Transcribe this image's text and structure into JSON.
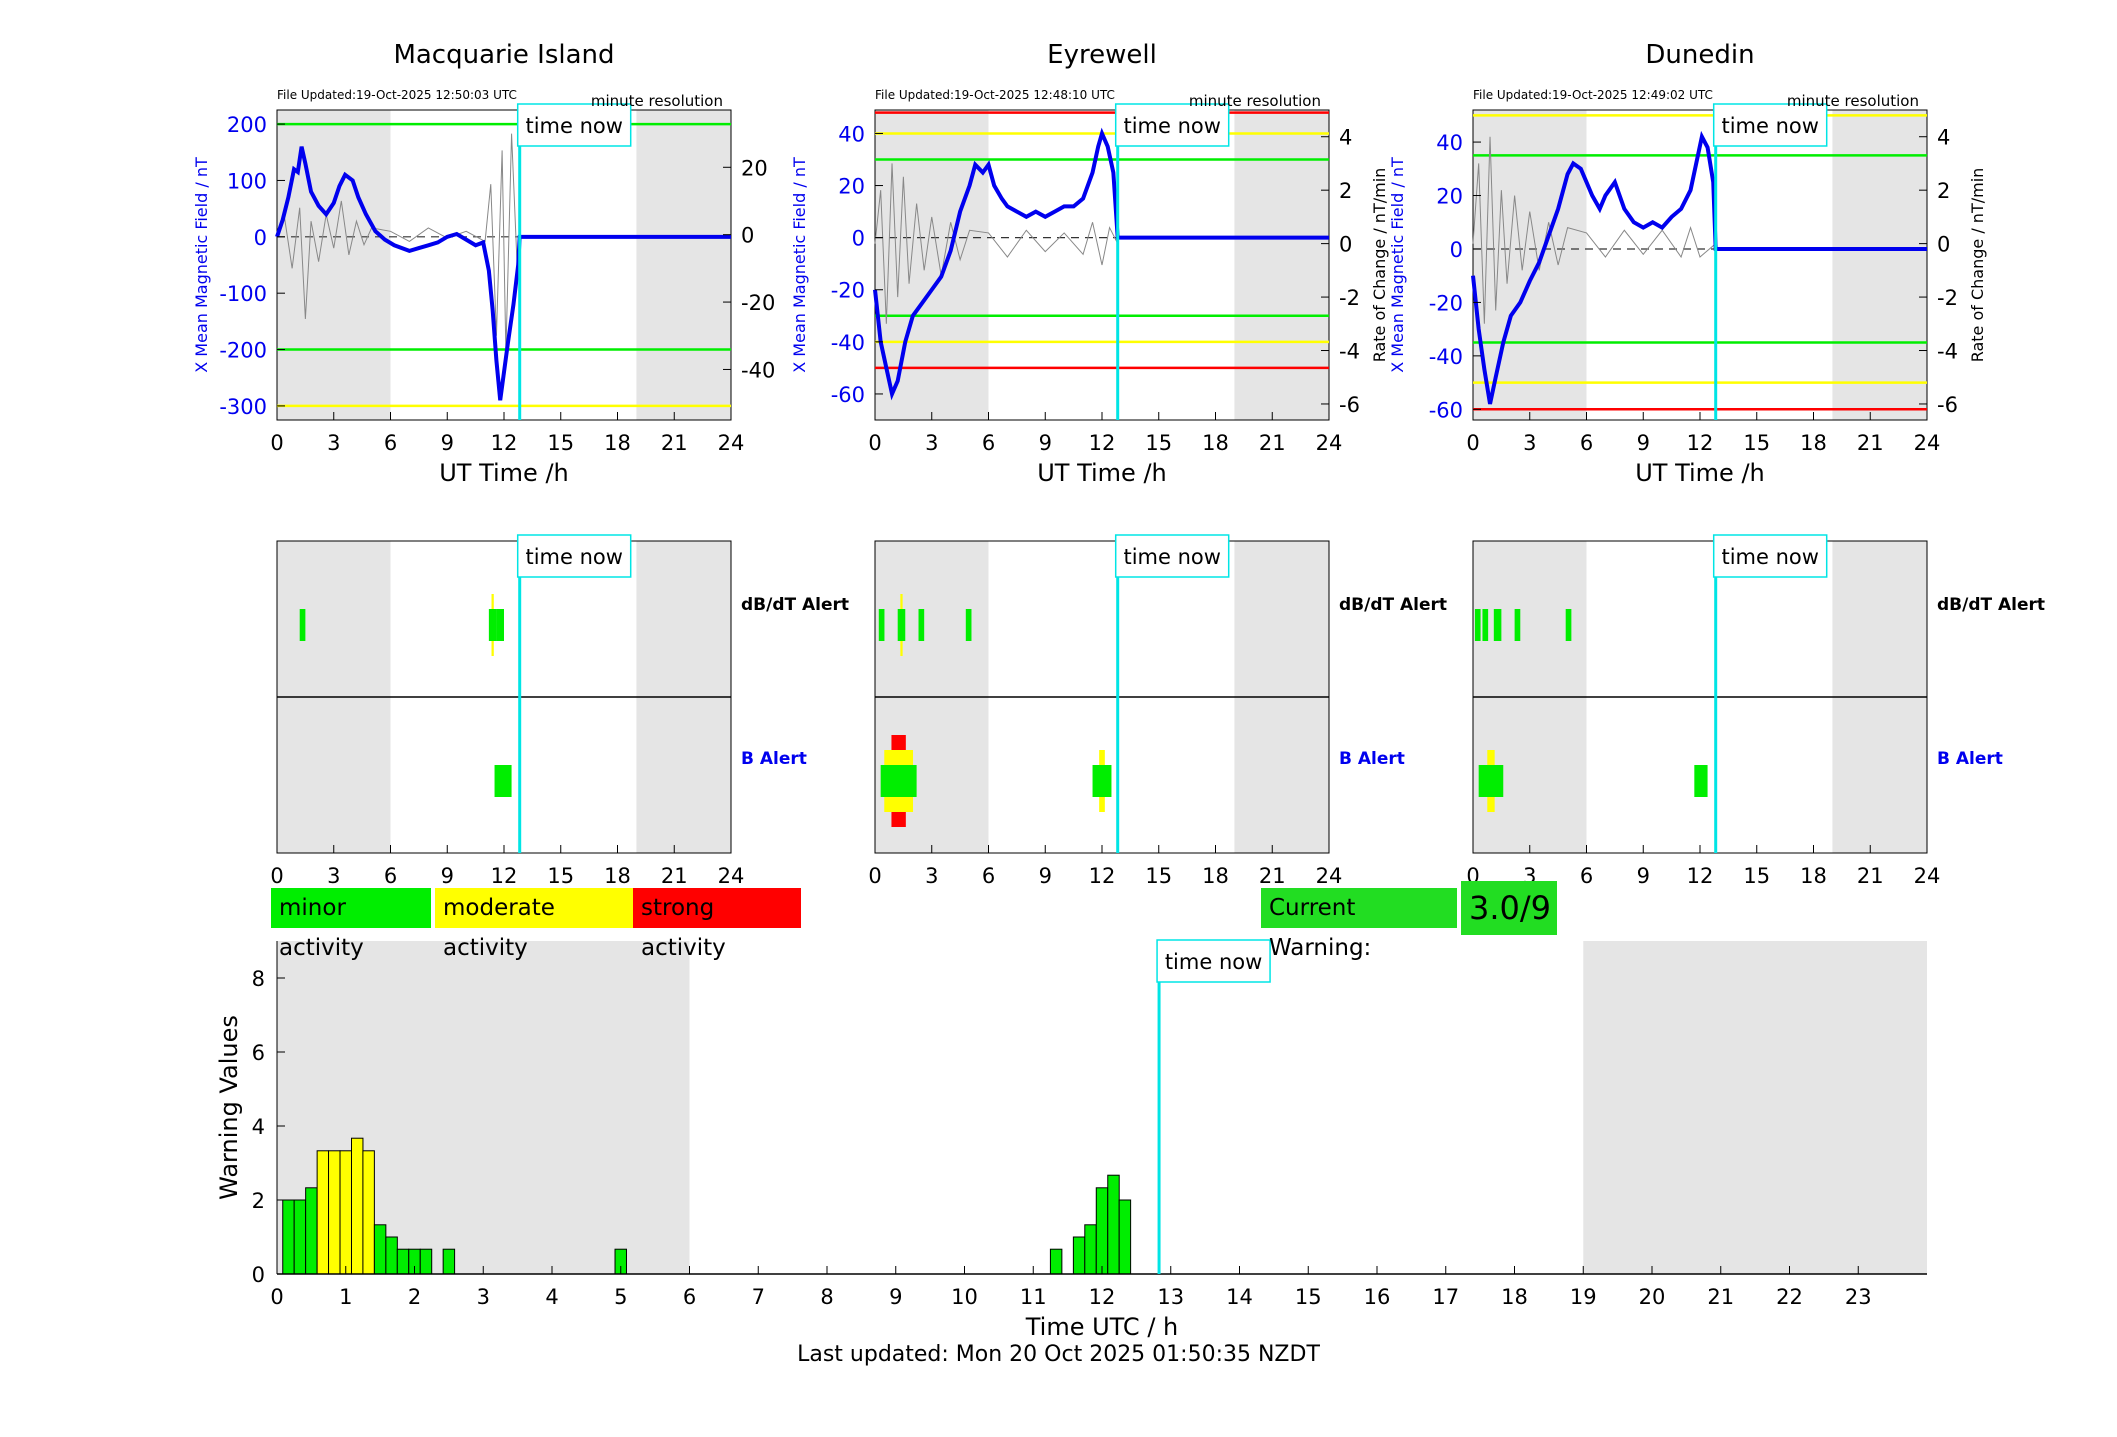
{
  "colors": {
    "minor": "#00ee00",
    "moderate": "#ffff00",
    "strong": "#ff0000",
    "field": "#0000ee",
    "roc": "#888888",
    "timenow": "#00e5e5",
    "shade": "#e5e5e5"
  },
  "legend": {
    "minor": "minor activity",
    "moderate": "moderate activity",
    "strong": "strong activity"
  },
  "current_warning": {
    "label": "Current Warning:",
    "value": "3.0/9"
  },
  "footer": "Last updated: Mon 20 Oct 2025 01:50:35 NZDT",
  "chart_data": [
    {
      "type": "line",
      "title": "Macquarie Island",
      "file_updated": "File Updated:19-Oct-2025 12:50:03 UTC",
      "resolution": "minute resolution",
      "time_now_label": "time now",
      "time_now": 12.83,
      "xlabel": "UT Time /h",
      "ylabel_left": "X Mean Magnetic Field / nT",
      "ylabel_right": "",
      "xlim": [
        0,
        24
      ],
      "ylim_left": [
        -325,
        225
      ],
      "ylim_right": [
        -55,
        37
      ],
      "xticks": [
        "0",
        "3",
        "6",
        "9",
        "12",
        "15",
        "18",
        "21",
        "24"
      ],
      "yticks_left": [
        200,
        100,
        0,
        -100,
        -200,
        -300
      ],
      "yticks_right": [
        20,
        0,
        -20,
        -40
      ],
      "shaded": [
        [
          0,
          6
        ],
        [
          19,
          24
        ]
      ],
      "thresholds": [
        {
          "value": 200,
          "color": "green"
        },
        {
          "value": -200,
          "color": "green"
        },
        {
          "value": -300,
          "color": "yellow"
        }
      ],
      "field_series": [
        [
          0,
          0
        ],
        [
          0.3,
          30
        ],
        [
          0.6,
          70
        ],
        [
          0.9,
          120
        ],
        [
          1.1,
          115
        ],
        [
          1.3,
          160
        ],
        [
          1.5,
          130
        ],
        [
          1.8,
          80
        ],
        [
          2.2,
          55
        ],
        [
          2.6,
          40
        ],
        [
          3,
          60
        ],
        [
          3.3,
          90
        ],
        [
          3.6,
          110
        ],
        [
          4,
          100
        ],
        [
          4.3,
          70
        ],
        [
          4.7,
          40
        ],
        [
          5.2,
          10
        ],
        [
          5.7,
          -5
        ],
        [
          6.2,
          -15
        ],
        [
          7,
          -25
        ],
        [
          7.5,
          -20
        ],
        [
          8,
          -15
        ],
        [
          8.5,
          -10
        ],
        [
          9,
          0
        ],
        [
          9.5,
          5
        ],
        [
          10,
          -5
        ],
        [
          10.5,
          -15
        ],
        [
          10.9,
          -10
        ],
        [
          11.2,
          -60
        ],
        [
          11.4,
          -130
        ],
        [
          11.6,
          -220
        ],
        [
          11.8,
          -290
        ],
        [
          12,
          -240
        ],
        [
          12.2,
          -190
        ],
        [
          12.5,
          -120
        ],
        [
          12.75,
          -50
        ],
        [
          12.83,
          0
        ],
        [
          24,
          0
        ]
      ],
      "roc_series": [
        [
          0,
          0
        ],
        [
          0.4,
          5
        ],
        [
          0.8,
          -10
        ],
        [
          1.2,
          8
        ],
        [
          1.5,
          -25
        ],
        [
          1.8,
          4
        ],
        [
          2.2,
          -8
        ],
        [
          2.6,
          6
        ],
        [
          3,
          -4
        ],
        [
          3.4,
          10
        ],
        [
          3.8,
          -6
        ],
        [
          4.2,
          4
        ],
        [
          4.6,
          -3
        ],
        [
          5,
          2
        ],
        [
          6,
          1
        ],
        [
          7,
          -2
        ],
        [
          8,
          2
        ],
        [
          9,
          -1
        ],
        [
          10,
          1
        ],
        [
          11,
          -2
        ],
        [
          11.3,
          15
        ],
        [
          11.6,
          -30
        ],
        [
          11.9,
          25
        ],
        [
          12.1,
          -35
        ],
        [
          12.4,
          30
        ],
        [
          12.7,
          -10
        ],
        [
          12.83,
          0
        ]
      ]
    },
    {
      "type": "line",
      "title": "Eyrewell",
      "file_updated": "File Updated:19-Oct-2025 12:48:10 UTC",
      "resolution": "minute resolution",
      "time_now_label": "time now",
      "time_now": 12.83,
      "xlabel": "UT Time /h",
      "ylabel_left": "X Mean Magnetic Field / nT",
      "ylabel_right": "Rate of Change / nT/min",
      "xlim": [
        0,
        24
      ],
      "ylim_left": [
        -70,
        49
      ],
      "ylim_right": [
        -6.6,
        5
      ],
      "xticks": [
        "0",
        "3",
        "6",
        "9",
        "12",
        "15",
        "18",
        "21",
        "24"
      ],
      "yticks_left": [
        40,
        20,
        0,
        -20,
        -40,
        -60
      ],
      "yticks_right": [
        4,
        2,
        0,
        -2,
        -4,
        -6
      ],
      "shaded": [
        [
          0,
          6
        ],
        [
          19,
          24
        ]
      ],
      "thresholds": [
        {
          "value": 48,
          "color": "red"
        },
        {
          "value": 40,
          "color": "yellow"
        },
        {
          "value": 30,
          "color": "green"
        },
        {
          "value": -30,
          "color": "green"
        },
        {
          "value": -40,
          "color": "yellow"
        },
        {
          "value": -50,
          "color": "red"
        }
      ],
      "field_series": [
        [
          0,
          -20
        ],
        [
          0.3,
          -40
        ],
        [
          0.6,
          -50
        ],
        [
          0.9,
          -60
        ],
        [
          1.2,
          -55
        ],
        [
          1.6,
          -40
        ],
        [
          2,
          -30
        ],
        [
          2.5,
          -25
        ],
        [
          3,
          -20
        ],
        [
          3.5,
          -15
        ],
        [
          4,
          -5
        ],
        [
          4.5,
          10
        ],
        [
          5,
          20
        ],
        [
          5.3,
          28
        ],
        [
          5.7,
          25
        ],
        [
          6,
          28
        ],
        [
          6.3,
          20
        ],
        [
          6.7,
          15
        ],
        [
          7,
          12
        ],
        [
          7.5,
          10
        ],
        [
          8,
          8
        ],
        [
          8.5,
          10
        ],
        [
          9,
          8
        ],
        [
          9.5,
          10
        ],
        [
          10,
          12
        ],
        [
          10.5,
          12
        ],
        [
          11,
          15
        ],
        [
          11.5,
          25
        ],
        [
          11.8,
          35
        ],
        [
          12,
          40
        ],
        [
          12.3,
          35
        ],
        [
          12.6,
          25
        ],
        [
          12.83,
          0
        ],
        [
          24,
          0
        ]
      ],
      "roc_series": [
        [
          0,
          0
        ],
        [
          0.3,
          2
        ],
        [
          0.6,
          -3
        ],
        [
          0.9,
          3
        ],
        [
          1.2,
          -2
        ],
        [
          1.5,
          2.5
        ],
        [
          1.8,
          -1.5
        ],
        [
          2.2,
          1.5
        ],
        [
          2.6,
          -1
        ],
        [
          3,
          1
        ],
        [
          3.5,
          -1.2
        ],
        [
          4,
          0.8
        ],
        [
          4.5,
          -0.6
        ],
        [
          5,
          0.5
        ],
        [
          6,
          0.4
        ],
        [
          7,
          -0.5
        ],
        [
          8,
          0.5
        ],
        [
          9,
          -0.3
        ],
        [
          10,
          0.4
        ],
        [
          11,
          -0.4
        ],
        [
          11.5,
          0.8
        ],
        [
          12,
          -0.8
        ],
        [
          12.4,
          0.6
        ],
        [
          12.83,
          0
        ]
      ]
    },
    {
      "type": "line",
      "title": "Dunedin",
      "file_updated": "File Updated:19-Oct-2025 12:49:02 UTC",
      "resolution": "minute resolution",
      "time_now_label": "time now",
      "time_now": 12.83,
      "xlabel": "UT Time /h",
      "ylabel_left": "X Mean Magnetic Field / nT",
      "ylabel_right": "Rate of Change / nT/min",
      "xlim": [
        0,
        24
      ],
      "ylim_left": [
        -64,
        52
      ],
      "ylim_right": [
        -6.6,
        5
      ],
      "xticks": [
        "0",
        "3",
        "6",
        "9",
        "12",
        "15",
        "18",
        "21",
        "24"
      ],
      "yticks_left": [
        40,
        20,
        0,
        -20,
        -40,
        -60
      ],
      "yticks_right": [
        4,
        2,
        0,
        -2,
        -4,
        -6
      ],
      "shaded": [
        [
          0,
          6
        ],
        [
          19,
          24
        ]
      ],
      "thresholds": [
        {
          "value": 50,
          "color": "yellow"
        },
        {
          "value": 35,
          "color": "green"
        },
        {
          "value": -35,
          "color": "green"
        },
        {
          "value": -50,
          "color": "yellow"
        },
        {
          "value": -60,
          "color": "red"
        }
      ],
      "field_series": [
        [
          0,
          -10
        ],
        [
          0.3,
          -30
        ],
        [
          0.6,
          -45
        ],
        [
          0.9,
          -58
        ],
        [
          1.2,
          -48
        ],
        [
          1.6,
          -35
        ],
        [
          2,
          -25
        ],
        [
          2.5,
          -20
        ],
        [
          3,
          -12
        ],
        [
          3.5,
          -5
        ],
        [
          4,
          5
        ],
        [
          4.5,
          15
        ],
        [
          5,
          28
        ],
        [
          5.3,
          32
        ],
        [
          5.7,
          30
        ],
        [
          6,
          25
        ],
        [
          6.3,
          20
        ],
        [
          6.7,
          15
        ],
        [
          7,
          20
        ],
        [
          7.5,
          25
        ],
        [
          8,
          15
        ],
        [
          8.5,
          10
        ],
        [
          9,
          8
        ],
        [
          9.5,
          10
        ],
        [
          10,
          8
        ],
        [
          10.5,
          12
        ],
        [
          11,
          15
        ],
        [
          11.5,
          22
        ],
        [
          11.8,
          32
        ],
        [
          12.1,
          42
        ],
        [
          12.4,
          38
        ],
        [
          12.7,
          25
        ],
        [
          12.83,
          0
        ],
        [
          24,
          0
        ]
      ],
      "roc_series": [
        [
          0,
          0
        ],
        [
          0.3,
          3
        ],
        [
          0.6,
          -3
        ],
        [
          0.9,
          4
        ],
        [
          1.2,
          -2.5
        ],
        [
          1.5,
          2
        ],
        [
          1.8,
          -1.5
        ],
        [
          2.2,
          1.8
        ],
        [
          2.6,
          -1
        ],
        [
          3,
          1.2
        ],
        [
          3.5,
          -1
        ],
        [
          4,
          0.8
        ],
        [
          4.5,
          -0.8
        ],
        [
          5,
          0.6
        ],
        [
          6,
          0.4
        ],
        [
          7,
          -0.5
        ],
        [
          8,
          0.5
        ],
        [
          9,
          -0.4
        ],
        [
          10,
          0.5
        ],
        [
          11,
          -0.5
        ],
        [
          11.5,
          0.6
        ],
        [
          12,
          -0.5
        ],
        [
          12.83,
          0
        ]
      ]
    },
    {
      "type": "bar",
      "title": "",
      "station": "Macquarie Island",
      "time_now_label": "time now",
      "time_now": 12.83,
      "row_labels": [
        "dB/dT Alert",
        "B Alert"
      ],
      "xlim": [
        0,
        24
      ],
      "xticks": [
        "0",
        "3",
        "6",
        "9",
        "12",
        "15",
        "18",
        "21",
        "24"
      ],
      "shaded": [
        [
          0,
          6
        ],
        [
          19,
          24
        ]
      ],
      "dbdt_alerts": [
        {
          "start": 1.2,
          "end": 1.5,
          "level": "minor"
        },
        {
          "start": 11.2,
          "end": 11.6,
          "level": "moderate"
        },
        {
          "start": 11.6,
          "end": 12.0,
          "level": "minor"
        }
      ],
      "b_alerts": [
        {
          "start": 11.5,
          "end": 12.4,
          "level": "minor"
        }
      ]
    },
    {
      "type": "bar",
      "title": "",
      "station": "Eyrewell",
      "time_now_label": "time now",
      "time_now": 12.83,
      "row_labels": [
        "dB/dT Alert",
        "B Alert"
      ],
      "xlim": [
        0,
        24
      ],
      "xticks": [
        "0",
        "3",
        "6",
        "9",
        "12",
        "15",
        "18",
        "21",
        "24"
      ],
      "shaded": [
        [
          0,
          6
        ],
        [
          19,
          24
        ]
      ],
      "dbdt_alerts": [
        {
          "start": 0.2,
          "end": 0.5,
          "level": "minor"
        },
        {
          "start": 1.2,
          "end": 1.6,
          "level": "moderate"
        },
        {
          "start": 2.3,
          "end": 2.6,
          "level": "minor"
        },
        {
          "start": 4.8,
          "end": 5.1,
          "level": "minor"
        }
      ],
      "b_alerts": [
        {
          "start": 0.3,
          "end": 2.2,
          "level": "strong"
        },
        {
          "start": 11.5,
          "end": 12.5,
          "level": "moderate"
        }
      ]
    },
    {
      "type": "bar",
      "title": "",
      "station": "Dunedin",
      "time_now_label": "time now",
      "time_now": 12.83,
      "row_labels": [
        "dB/dT Alert",
        "B Alert"
      ],
      "xlim": [
        0,
        24
      ],
      "xticks": [
        "0",
        "3",
        "6",
        "9",
        "12",
        "15",
        "18",
        "21",
        "24"
      ],
      "shaded": [
        [
          0,
          6
        ],
        [
          19,
          24
        ]
      ],
      "dbdt_alerts": [
        {
          "start": 0.1,
          "end": 0.4,
          "level": "minor"
        },
        {
          "start": 0.5,
          "end": 0.8,
          "level": "minor"
        },
        {
          "start": 1.1,
          "end": 1.5,
          "level": "minor"
        },
        {
          "start": 2.2,
          "end": 2.5,
          "level": "minor"
        },
        {
          "start": 4.9,
          "end": 5.2,
          "level": "minor"
        }
      ],
      "b_alerts": [
        {
          "start": 0.3,
          "end": 1.6,
          "level": "moderate"
        },
        {
          "start": 11.7,
          "end": 12.4,
          "level": "minor"
        }
      ]
    },
    {
      "type": "bar",
      "title": "",
      "xlabel": "Time UTC / h",
      "ylabel": "Warning Values",
      "time_now_label": "time now",
      "time_now": 12.83,
      "xlim": [
        0,
        24
      ],
      "ylim": [
        0,
        9
      ],
      "yticks": [
        0,
        2,
        4,
        6,
        8
      ],
      "xticks": [
        "0",
        "1",
        "2",
        "3",
        "4",
        "5",
        "6",
        "7",
        "8",
        "9",
        "10",
        "11",
        "12",
        "13",
        "14",
        "15",
        "16",
        "17",
        "18",
        "19",
        "20",
        "21",
        "22",
        "23"
      ],
      "shaded": [
        [
          0,
          6
        ],
        [
          19,
          24
        ]
      ],
      "bin_width": 0.1667,
      "bars": [
        {
          "x": 0.167,
          "value": 2.0,
          "level": "minor"
        },
        {
          "x": 0.333,
          "value": 2.0,
          "level": "minor"
        },
        {
          "x": 0.5,
          "value": 2.33,
          "level": "minor"
        },
        {
          "x": 0.667,
          "value": 3.33,
          "level": "moderate"
        },
        {
          "x": 0.833,
          "value": 3.33,
          "level": "moderate"
        },
        {
          "x": 1.0,
          "value": 3.33,
          "level": "moderate"
        },
        {
          "x": 1.167,
          "value": 3.67,
          "level": "moderate"
        },
        {
          "x": 1.333,
          "value": 3.33,
          "level": "moderate"
        },
        {
          "x": 1.5,
          "value": 1.33,
          "level": "minor"
        },
        {
          "x": 1.667,
          "value": 1.0,
          "level": "minor"
        },
        {
          "x": 1.833,
          "value": 0.67,
          "level": "minor"
        },
        {
          "x": 2.0,
          "value": 0.67,
          "level": "minor"
        },
        {
          "x": 2.167,
          "value": 0.67,
          "level": "minor"
        },
        {
          "x": 2.5,
          "value": 0.67,
          "level": "minor"
        },
        {
          "x": 5.0,
          "value": 0.67,
          "level": "minor"
        },
        {
          "x": 11.333,
          "value": 0.67,
          "level": "minor"
        },
        {
          "x": 11.667,
          "value": 1.0,
          "level": "minor"
        },
        {
          "x": 11.833,
          "value": 1.33,
          "level": "minor"
        },
        {
          "x": 12.0,
          "value": 2.33,
          "level": "minor"
        },
        {
          "x": 12.167,
          "value": 2.67,
          "level": "minor"
        },
        {
          "x": 12.333,
          "value": 2.0,
          "level": "minor"
        }
      ]
    }
  ]
}
